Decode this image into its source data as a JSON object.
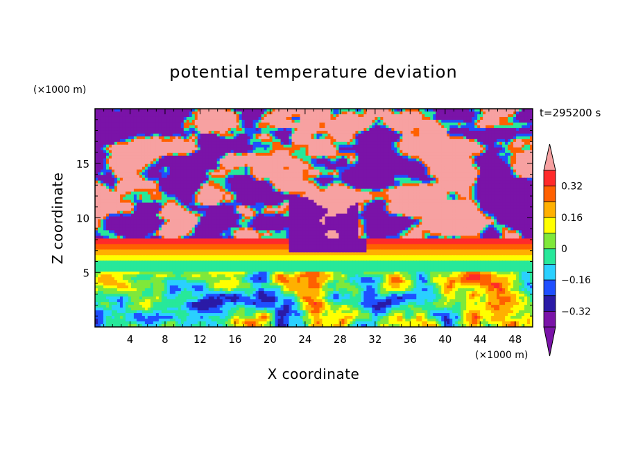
{
  "chart_data": {
    "type": "heatmap",
    "title": "potential temperature deviation",
    "xlabel": "X coordinate",
    "ylabel": "Z coordinate",
    "x_unit": "(×1000 m)",
    "y_unit": "(×1000 m)",
    "time_label": "t=295200 s",
    "xlim": [
      0,
      50
    ],
    "ylim": [
      0,
      20
    ],
    "x_ticks": [
      4,
      8,
      12,
      16,
      20,
      24,
      28,
      32,
      36,
      40,
      44,
      48
    ],
    "y_ticks": [
      5,
      10,
      15
    ],
    "colorbar": {
      "levels": [
        -0.4,
        -0.32,
        -0.24,
        -0.16,
        -0.08,
        0,
        0.08,
        0.16,
        0.24,
        0.32,
        0.4
      ],
      "tick_labels": [
        "0.32",
        "0.16",
        "0",
        "−0.16",
        "−0.32"
      ],
      "tick_values": [
        0.32,
        0.16,
        0,
        -0.16,
        -0.32
      ],
      "colors": [
        "#7a13a8",
        "#2a1aa6",
        "#1f4fff",
        "#2ad0ff",
        "#27e89a",
        "#7fe83a",
        "#ffff00",
        "#ffb000",
        "#ff6000",
        "#ff2a2a",
        "#f7a1a1"
      ],
      "extend": "both"
    },
    "field_description_zones": [
      {
        "z_range": [
          0,
          5
        ],
        "character": "turbulent mixed layer"
      },
      {
        "z_range": [
          5,
          6
        ],
        "character": "green band"
      },
      {
        "z_range": [
          6,
          8
        ],
        "character": "stable layered bands"
      },
      {
        "z_range": [
          8,
          20
        ],
        "character": "patchy purple/pink cloud layer"
      }
    ]
  }
}
